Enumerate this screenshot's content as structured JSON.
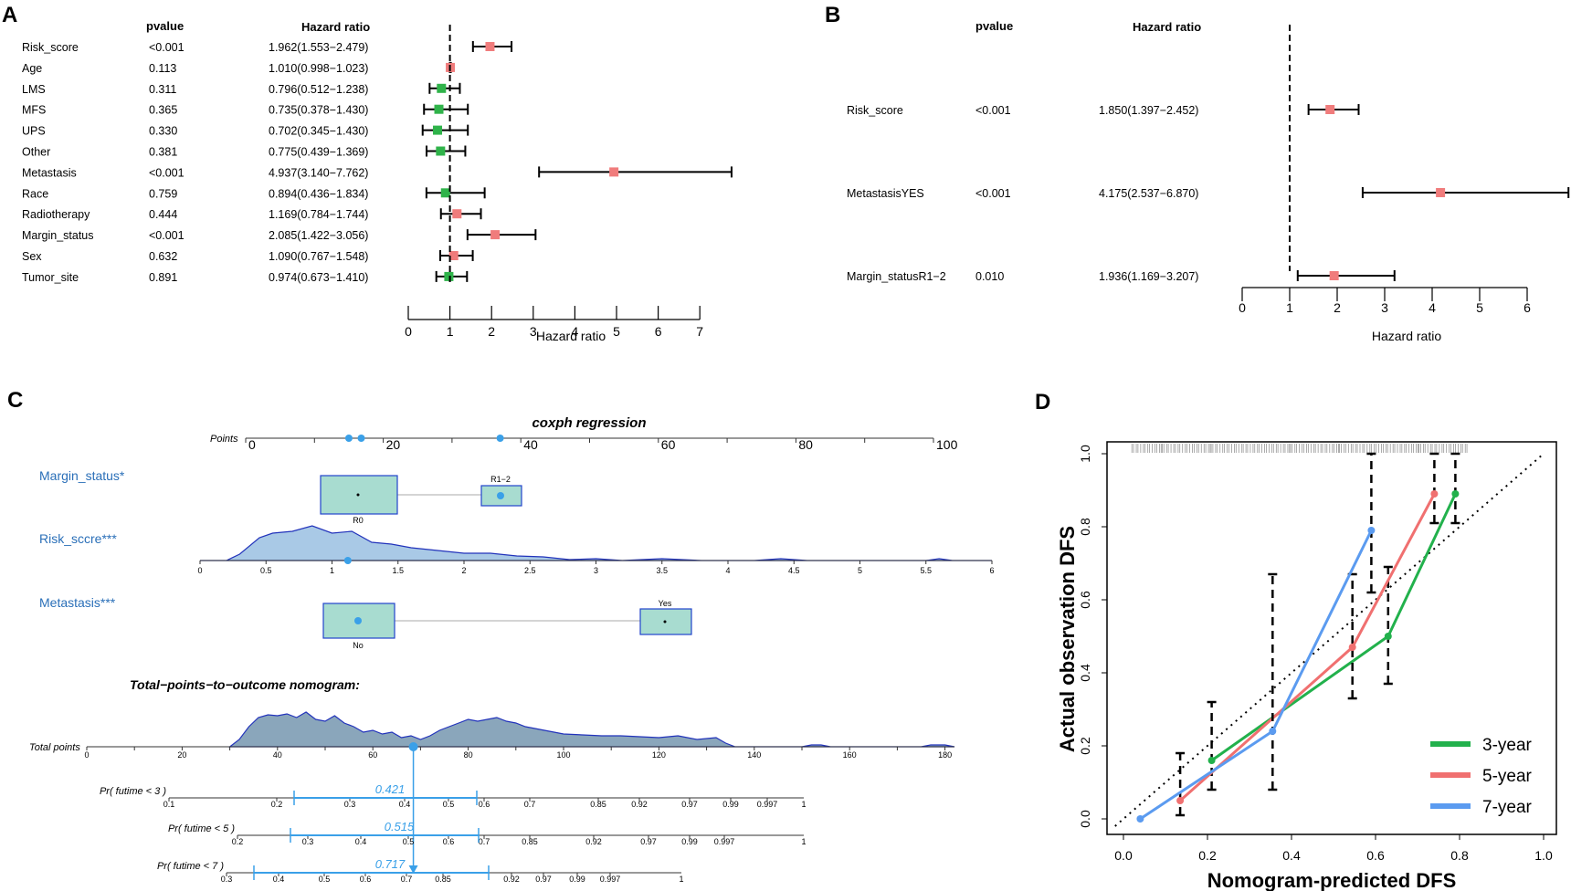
{
  "chart_data": [
    {
      "panel": "A",
      "type": "forest",
      "col_pvalue": "pvalue",
      "col_hr": "Hazard ratio",
      "xlabel": "Hazard ratio",
      "xticks": [
        0,
        1,
        2,
        3,
        4,
        5,
        6,
        7
      ],
      "xlim": [
        0,
        7
      ],
      "rows": [
        {
          "name": "Risk_score",
          "p": "<0.001",
          "hr_text": "1.962(1.553−2.479)",
          "hr": 1.962,
          "lo": 1.553,
          "hi": 2.479,
          "color": "#f07c7c"
        },
        {
          "name": "Age",
          "p": "0.113",
          "hr_text": "1.010(0.998−1.023)",
          "hr": 1.01,
          "lo": 0.998,
          "hi": 1.023,
          "color": "#f07c7c"
        },
        {
          "name": "LMS",
          "p": "0.311",
          "hr_text": "0.796(0.512−1.238)",
          "hr": 0.796,
          "lo": 0.512,
          "hi": 1.238,
          "color": "#2fb34a"
        },
        {
          "name": "MFS",
          "p": "0.365",
          "hr_text": "0.735(0.378−1.430)",
          "hr": 0.735,
          "lo": 0.378,
          "hi": 1.43,
          "color": "#2fb34a"
        },
        {
          "name": "UPS",
          "p": "0.330",
          "hr_text": "0.702(0.345−1.430)",
          "hr": 0.702,
          "lo": 0.345,
          "hi": 1.43,
          "color": "#2fb34a"
        },
        {
          "name": "Other",
          "p": "0.381",
          "hr_text": "0.775(0.439−1.369)",
          "hr": 0.775,
          "lo": 0.439,
          "hi": 1.369,
          "color": "#2fb34a"
        },
        {
          "name": "Metastasis",
          "p": "<0.001",
          "hr_text": "4.937(3.140−7.762)",
          "hr": 4.937,
          "lo": 3.14,
          "hi": 7.762,
          "color": "#f07c7c"
        },
        {
          "name": "Race",
          "p": "0.759",
          "hr_text": "0.894(0.436−1.834)",
          "hr": 0.894,
          "lo": 0.436,
          "hi": 1.834,
          "color": "#2fb34a"
        },
        {
          "name": "Radiotherapy",
          "p": "0.444",
          "hr_text": "1.169(0.784−1.744)",
          "hr": 1.169,
          "lo": 0.784,
          "hi": 1.744,
          "color": "#f07c7c"
        },
        {
          "name": "Margin_status",
          "p": "<0.001",
          "hr_text": "2.085(1.422−3.056)",
          "hr": 2.085,
          "lo": 1.422,
          "hi": 3.056,
          "color": "#f07c7c"
        },
        {
          "name": "Sex",
          "p": "0.632",
          "hr_text": "1.090(0.767−1.548)",
          "hr": 1.09,
          "lo": 0.767,
          "hi": 1.548,
          "color": "#f07c7c"
        },
        {
          "name": "Tumor_site",
          "p": "0.891",
          "hr_text": "0.974(0.673−1.410)",
          "hr": 0.974,
          "lo": 0.673,
          "hi": 1.41,
          "color": "#2fb34a"
        }
      ]
    },
    {
      "panel": "B",
      "type": "forest",
      "col_pvalue": "pvalue",
      "col_hr": "Hazard ratio",
      "xlabel": "Hazard ratio",
      "xticks": [
        0,
        1,
        2,
        3,
        4,
        5,
        6
      ],
      "xlim": [
        0,
        6
      ],
      "rows": [
        {
          "name": "Risk_score",
          "p": "<0.001",
          "hr_text": "1.850(1.397−2.452)",
          "hr": 1.85,
          "lo": 1.397,
          "hi": 2.452,
          "color": "#f07c7c"
        },
        {
          "name": "MetastasisYES",
          "p": "<0.001",
          "hr_text": "4.175(2.537−6.870)",
          "hr": 4.175,
          "lo": 2.537,
          "hi": 6.87,
          "color": "#f07c7c"
        },
        {
          "name": "Margin_statusR1−2",
          "p": "0.010",
          "hr_text": "1.936(1.169−3.207)",
          "hr": 1.936,
          "lo": 1.169,
          "hi": 3.207,
          "color": "#f07c7c"
        }
      ]
    },
    {
      "panel": "C",
      "type": "nomogram",
      "title": "coxph regression",
      "points_label": "Points",
      "points_ticks": [
        0,
        20,
        40,
        60,
        80,
        100
      ],
      "points_marks": [
        15,
        16.8,
        37
      ],
      "margin_label": "Margin_status*",
      "margin_levels": [
        "R0",
        "R1−2"
      ],
      "risk_label": "Risk_sccre***",
      "risk_ticks": [
        "0",
        "0.5",
        "1",
        "1.5",
        "2",
        "2.5",
        "3",
        "3.5",
        "4",
        "4.5",
        "5",
        "5.5",
        "6"
      ],
      "risk_mark": 1.12,
      "metastasis_label": "Metastasis***",
      "metastasis_levels": [
        "No",
        "Yes"
      ],
      "total_title": "Total−points−to−outcome nomogram:",
      "total_label": "Total points",
      "total_ticks": [
        0,
        20,
        40,
        60,
        80,
        100,
        120,
        140,
        160,
        180
      ],
      "total_mark": 68.5,
      "pr_rows": [
        {
          "label": "Pr( futime < 3 )",
          "ticks": [
            "0.1",
            "0.2",
            "0.3",
            "0.4",
            "0.5",
            "0.6",
            "0.7",
            "0.85",
            "0.92",
            "0.97",
            "0.99",
            "0.997"
          ],
          "value": "0.421",
          "extra": "1"
        },
        {
          "label": "Pr( futime < 5 )",
          "ticks": [
            "0.2",
            "0.3",
            "0.4",
            "0.5",
            "0.6",
            "0.7",
            "0.85",
            "0.92",
            "0.97",
            "0.99",
            "0.997"
          ],
          "value": "0.515",
          "extra": "1"
        },
        {
          "label": "Pr( futime < 7 )",
          "ticks": [
            "0.3",
            "0.4",
            "0.5",
            "0.6",
            "0.7",
            "0.85",
            "0.92",
            "0.97",
            "0.99",
            "0.997"
          ],
          "value": "0.717",
          "extra": "1"
        }
      ]
    },
    {
      "panel": "D",
      "type": "line",
      "title": "",
      "xlabel": "Nomogram-predicted DFS",
      "ylabel": "Actual observation DFS",
      "xlim": [
        0,
        1
      ],
      "ylim": [
        0,
        1
      ],
      "xticks": [
        "0.0",
        "0.2",
        "0.4",
        "0.6",
        "0.8",
        "1.0"
      ],
      "yticks": [
        "0.0",
        "0.2",
        "0.4",
        "0.6",
        "0.8",
        "1.0"
      ],
      "series": [
        {
          "name": "3-year",
          "color": "#22b14c",
          "x": [
            0.21,
            0.63,
            0.79
          ],
          "y": [
            0.16,
            0.5,
            0.89
          ],
          "err_lo": [
            0.08,
            0.37,
            0.81
          ],
          "err_hi": [
            0.32,
            0.69,
            1.0
          ]
        },
        {
          "name": "5-year",
          "color": "#f07070",
          "x": [
            0.135,
            0.545,
            0.74
          ],
          "y": [
            0.05,
            0.47,
            0.89
          ],
          "err_lo": [
            0.01,
            0.33,
            0.81
          ],
          "err_hi": [
            0.18,
            0.67,
            1.0
          ]
        },
        {
          "name": "7-year",
          "color": "#5b9bf0",
          "x": [
            0.04,
            0.355,
            0.59
          ],
          "y": [
            0.0,
            0.24,
            0.79
          ],
          "err_lo": [
            0.0,
            0.08,
            0.62
          ],
          "err_hi": [
            0.0,
            0.67,
            1.0
          ]
        }
      ]
    }
  ],
  "panel_labels": {
    "a": "A",
    "b": "B",
    "c": "C",
    "d": "D"
  }
}
